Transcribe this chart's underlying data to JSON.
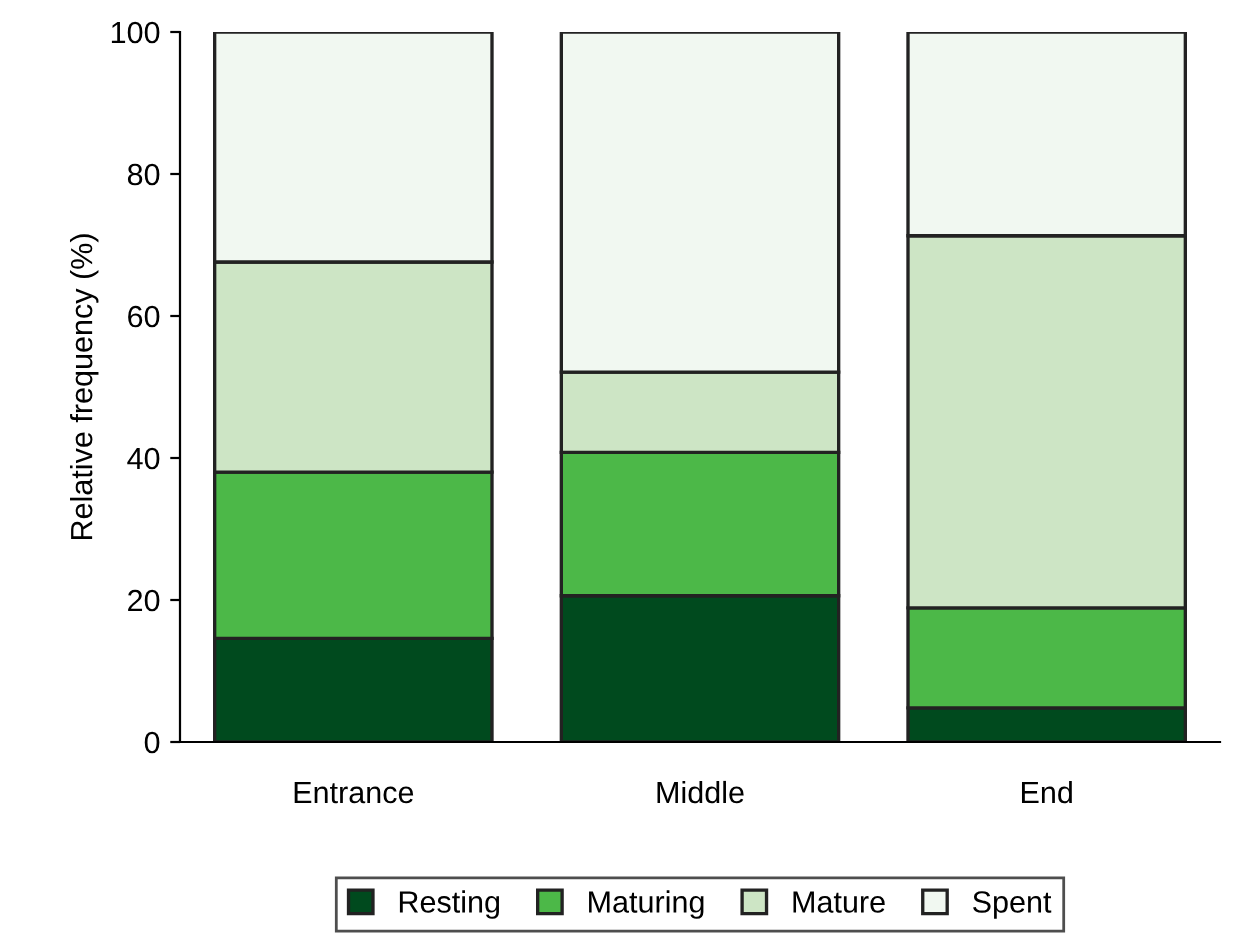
{
  "chart_data": {
    "type": "bar",
    "stacked": true,
    "ylabel": "Relative frequency (%)",
    "categories": [
      "Entrance",
      "Middle",
      "End"
    ],
    "series": [
      {
        "name": "Resting",
        "color": "#004a1e",
        "values": [
          14.6,
          20.6,
          4.8
        ]
      },
      {
        "name": "Maturing",
        "color": "#4cb848",
        "values": [
          23.4,
          20.2,
          14.1
        ]
      },
      {
        "name": "Mature",
        "color": "#cde5c5",
        "values": [
          29.6,
          11.3,
          52.4
        ]
      },
      {
        "name": "Spent",
        "color": "#f1f8f1",
        "values": [
          32.4,
          47.9,
          28.7
        ]
      }
    ],
    "ylim": [
      0,
      100
    ],
    "yticks": [
      0,
      20,
      40,
      60,
      80,
      100
    ],
    "grid": false,
    "legend": "bottom"
  }
}
